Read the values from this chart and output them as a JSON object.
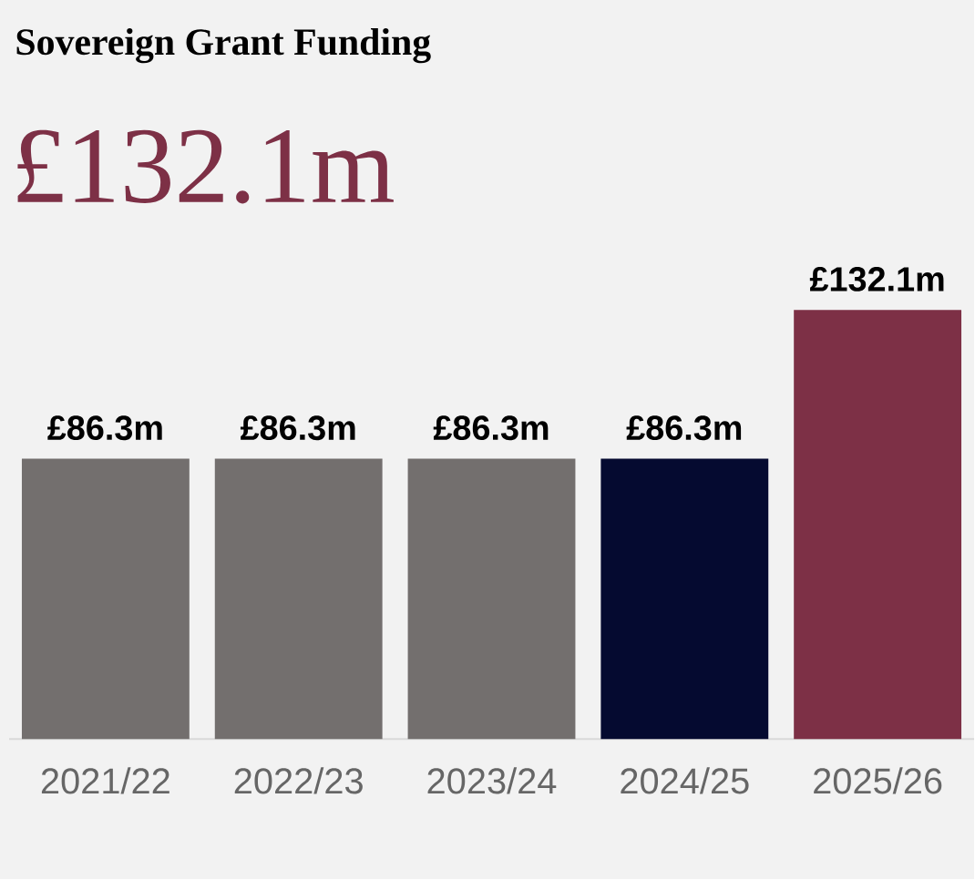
{
  "chart_data": {
    "type": "bar",
    "title": "Sovereign Grant Funding",
    "subtitle": "£132.1m",
    "categories": [
      "2021/22",
      "2022/23",
      "2023/24",
      "2024/25",
      "2025/26"
    ],
    "values": [
      86.3,
      86.3,
      86.3,
      86.3,
      132.1
    ],
    "colors": [
      "#736f6e",
      "#736f6e",
      "#736f6e",
      "#050a30",
      "#7d3046"
    ],
    "value_labels": [
      "£86.3m",
      "£86.3m",
      "£86.3m",
      "£86.3m",
      "£132.1m"
    ]
  }
}
